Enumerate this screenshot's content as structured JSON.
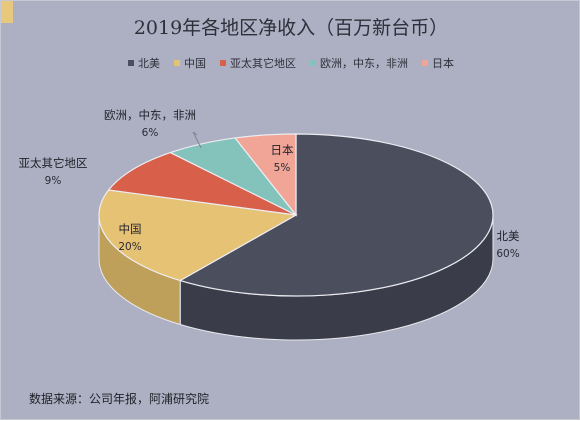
{
  "chart_data": {
    "type": "pie",
    "title": "2019年各地区净收入（百万新台币）",
    "series": [
      {
        "name": "北美",
        "value": 60,
        "label": "60%",
        "color": "#4a4e5d",
        "side": "#3a3d49"
      },
      {
        "name": "中国",
        "value": 20,
        "label": "20%",
        "color": "#e6c274",
        "side": "#bea05b"
      },
      {
        "name": "亚太其它地区",
        "value": 9,
        "label": "9%",
        "color": "#d8604a",
        "side": "#b14d3b"
      },
      {
        "name": "欧洲，中东，非洲",
        "value": 6,
        "label": "6%",
        "color": "#84c3bc",
        "side": "#6aa099"
      },
      {
        "name": "日本",
        "value": 5,
        "label": "5%",
        "color": "#f0a596",
        "side": "#c8877a"
      }
    ],
    "legend_position": "top"
  },
  "source_note": "数据来源：公司年报，阿浦研究院"
}
